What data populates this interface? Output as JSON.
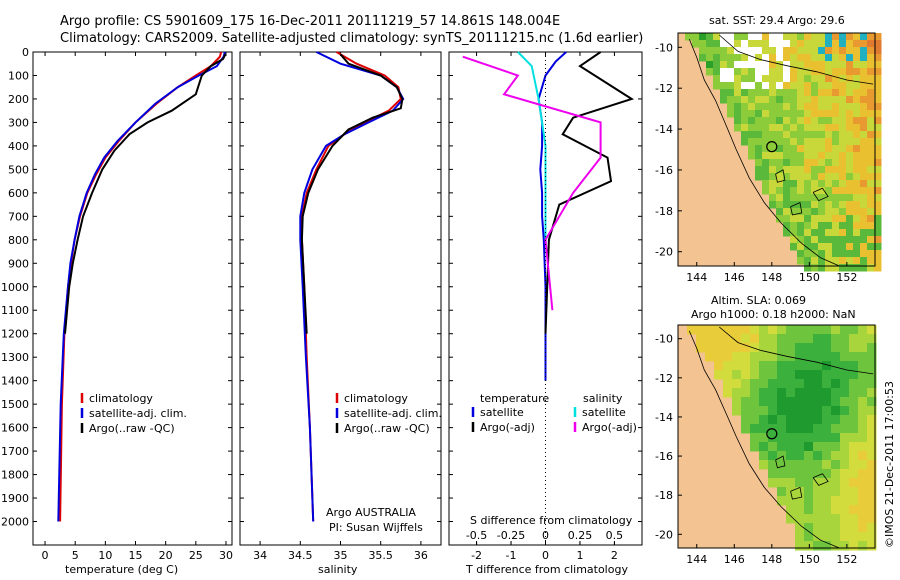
{
  "title": {
    "line1": "Argo profile: CS 5901609_175 16-Dec-2011 20111219_57 14.861S 148.004E",
    "line2": "Climatology: CARS2009. Satellite-adjusted climatology: synTS_20111215.nc (1.6d earlier)"
  },
  "colors": {
    "climatology": "#dd0000",
    "satellite": "#0000dd",
    "argo": "#000000",
    "salinity_satellite": "#00e0e0",
    "salinity_argo": "#ee00ee",
    "land": "#f4c392"
  },
  "credit": "©IMOS 21-Dec-2011 17:00:53",
  "chart_data": [
    {
      "type": "line",
      "name": "temperature-profile",
      "xlabel": "temperature (deg C)",
      "ylabel": "",
      "xlim": [
        -2,
        31
      ],
      "ylim": [
        2100,
        0
      ],
      "xticks": [
        0,
        5,
        10,
        15,
        20,
        25,
        30
      ],
      "yticks": [
        0,
        100,
        200,
        300,
        400,
        500,
        600,
        700,
        800,
        900,
        1000,
        1100,
        1200,
        1300,
        1400,
        1500,
        1600,
        1700,
        1800,
        1900,
        2000
      ],
      "legend": [
        "climatology",
        "satellite-adj. clim.",
        "Argo(..raw -QC)"
      ],
      "series": [
        {
          "name": "climatology",
          "color": "#dd0000",
          "x": [
            29.2,
            29.0,
            27.5,
            25.0,
            22.0,
            18.5,
            15.0,
            12.2,
            10.0,
            8.5,
            7.0,
            5.8,
            4.9,
            4.3,
            3.8,
            3.2,
            2.8,
            2.5
          ],
          "y": [
            0,
            20,
            60,
            100,
            150,
            220,
            300,
            380,
            450,
            520,
            600,
            700,
            800,
            900,
            1000,
            1200,
            1500,
            2000
          ]
        },
        {
          "name": "satellite-adj. clim.",
          "color": "#0000dd",
          "x": [
            29.8,
            29.6,
            28.5,
            25.5,
            22.0,
            18.3,
            15.0,
            12.0,
            9.8,
            8.3,
            6.9,
            5.7,
            4.9,
            4.2,
            3.8,
            3.1,
            2.6,
            2.2
          ],
          "y": [
            0,
            20,
            60,
            100,
            150,
            220,
            300,
            380,
            450,
            520,
            600,
            700,
            800,
            900,
            1000,
            1200,
            1500,
            2000
          ]
        },
        {
          "name": "Argo(..raw -QC)",
          "color": "#000000",
          "x": [
            29.9,
            29.5,
            27.5,
            26.0,
            25.0,
            21.0,
            17.0,
            14.0,
            11.5,
            9.5,
            7.8,
            6.3,
            5.4,
            4.6,
            4.0,
            3.3
          ],
          "y": [
            10,
            30,
            60,
            100,
            180,
            250,
            300,
            350,
            420,
            500,
            600,
            700,
            800,
            900,
            1000,
            1200
          ]
        }
      ]
    },
    {
      "type": "line",
      "name": "salinity-profile",
      "xlabel": "salinity",
      "xlim": [
        33.75,
        36.25
      ],
      "ylim": [
        2100,
        0
      ],
      "xticks": [
        34,
        34.5,
        35,
        35.5,
        36
      ],
      "legend": [
        "climatology",
        "satellite-adj. clim.",
        "Argo(..raw -QC)"
      ],
      "annotation": [
        "Argo AUSTRALIA",
        "PI: Susan Wijffels"
      ],
      "series": [
        {
          "name": "climatology",
          "color": "#dd0000",
          "x": [
            34.95,
            35.2,
            35.55,
            35.72,
            35.75,
            35.6,
            35.3,
            35.05,
            34.85,
            34.7,
            34.58,
            34.52,
            34.52,
            34.55,
            34.58,
            34.62,
            34.66
          ],
          "y": [
            0,
            50,
            100,
            150,
            200,
            250,
            300,
            350,
            400,
            500,
            600,
            700,
            800,
            1000,
            1300,
            1600,
            2000
          ]
        },
        {
          "name": "satellite-adj. clim.",
          "color": "#0000dd",
          "x": [
            34.7,
            35.0,
            35.5,
            35.7,
            35.78,
            35.65,
            35.35,
            35.05,
            34.82,
            34.65,
            34.55,
            34.5,
            34.5,
            34.53,
            34.57,
            34.62,
            34.66
          ],
          "y": [
            0,
            50,
            100,
            150,
            200,
            250,
            300,
            350,
            400,
            500,
            600,
            700,
            800,
            1000,
            1300,
            1600,
            2000
          ]
        },
        {
          "name": "Argo(..raw -QC)",
          "color": "#000000",
          "x": [
            35.0,
            35.1,
            35.5,
            35.7,
            35.77,
            35.75,
            35.4,
            35.1,
            34.9,
            34.72,
            34.6,
            34.53,
            34.52,
            34.55,
            34.58
          ],
          "y": [
            10,
            50,
            100,
            150,
            200,
            240,
            280,
            330,
            400,
            500,
            600,
            700,
            800,
            1000,
            1200
          ]
        }
      ]
    },
    {
      "type": "line",
      "name": "difference-profile",
      "xlabel": "T difference from climatology",
      "x2label": "S difference from climatology",
      "xlim": [
        -2.8,
        2.8
      ],
      "ylim": [
        2100,
        0
      ],
      "xticks": [
        -2,
        -1,
        0,
        1,
        2
      ],
      "x2ticks": [
        -0.5,
        -0.25,
        0,
        0.25,
        0.5
      ],
      "legend_temperature_title": "temperature",
      "legend_salinity_title": "salinity",
      "legend_temperature": [
        "satellite",
        "Argo(-adj)"
      ],
      "legend_salinity": [
        "satellite",
        "Argo(-adj)"
      ],
      "series": [
        {
          "name": "temperature satellite",
          "color": "#0000dd",
          "x": [
            0.6,
            0.3,
            0.0,
            -0.2,
            -0.1,
            -0.1,
            -0.15,
            -0.1,
            -0.1,
            -0.05,
            0.0,
            0.0,
            0.0
          ],
          "y": [
            0,
            40,
            100,
            200,
            300,
            400,
            500,
            600,
            700,
            800,
            1000,
            1200,
            1400
          ]
        },
        {
          "name": "temperature Argo(-adj)",
          "color": "#000000",
          "x": [
            1.6,
            1.0,
            2.5,
            0.8,
            0.5,
            1.8,
            1.9,
            0.4,
            0.1,
            0.05,
            0.0
          ],
          "y": [
            0,
            60,
            200,
            280,
            350,
            450,
            550,
            650,
            800,
            1000,
            1200
          ]
        },
        {
          "name": "salinity satellite",
          "color": "#00e0e0",
          "x": [
            -0.2,
            -0.1,
            -0.05,
            0.0,
            0.0,
            0.0
          ],
          "y": [
            0,
            60,
            200,
            400,
            600,
            800
          ]
        },
        {
          "name": "salinity Argo(-adj)",
          "color": "#ee00ee",
          "x": [
            -0.6,
            -0.2,
            -0.3,
            0.4,
            0.4,
            0.2,
            0.0,
            0.05
          ],
          "y": [
            20,
            100,
            180,
            300,
            450,
            600,
            800,
            1100
          ]
        }
      ]
    },
    {
      "type": "heatmap",
      "name": "sst-map",
      "title": "sat. SST: 29.4  Argo: 29.6",
      "xlim": [
        143,
        153.5
      ],
      "ylim": [
        -20.7,
        -9.3
      ],
      "xticks": [
        144,
        146,
        148,
        150,
        152
      ],
      "yticks": [
        -10,
        -12,
        -14,
        -16,
        -18,
        -20
      ],
      "marker": {
        "lon": 148.0,
        "lat": -14.86
      }
    },
    {
      "type": "heatmap",
      "name": "sla-map",
      "title": "Altim. SLA: 0.069",
      "subtitle": "Argo h1000: 0.18 h2000: NaN",
      "xlim": [
        143,
        153.5
      ],
      "ylim": [
        -20.7,
        -9.3
      ],
      "xticks": [
        144,
        146,
        148,
        150,
        152
      ],
      "yticks": [
        -10,
        -12,
        -14,
        -16,
        -18,
        -20
      ],
      "marker": {
        "lon": 148.0,
        "lat": -14.86
      }
    }
  ]
}
